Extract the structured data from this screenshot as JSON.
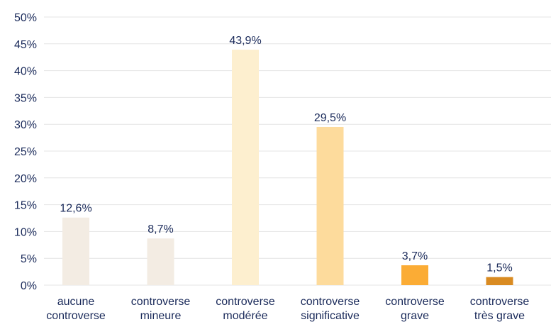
{
  "chart_data": {
    "type": "bar",
    "title": "",
    "xlabel": "",
    "ylabel": "",
    "ylim": [
      0,
      50
    ],
    "yticks": [
      0,
      5,
      10,
      15,
      20,
      25,
      30,
      35,
      40,
      45,
      50
    ],
    "ytick_labels": [
      "0%",
      "5%",
      "10%",
      "15%",
      "20%",
      "25%",
      "30%",
      "35%",
      "40%",
      "45%",
      "50%"
    ],
    "grid": true,
    "categories": [
      [
        "aucune",
        "controverse"
      ],
      [
        "controverse",
        "mineure"
      ],
      [
        "controverse",
        "modérée"
      ],
      [
        "controverse",
        "significative"
      ],
      [
        "controverse",
        "grave"
      ],
      [
        "controverse",
        "très grave"
      ]
    ],
    "values": [
      12.6,
      8.7,
      43.9,
      29.5,
      3.7,
      1.5
    ],
    "data_labels": [
      "12,6%",
      "8,7%",
      "43,9%",
      "29,5%",
      "3,7%",
      "1,5%"
    ],
    "bar_colors": [
      "#f3ece3",
      "#f3ece3",
      "#fdefcf",
      "#fddb9c",
      "#fbac35",
      "#d98b22"
    ],
    "text_color": "#1a2a5a",
    "grid_color": "#e4e4e4"
  }
}
